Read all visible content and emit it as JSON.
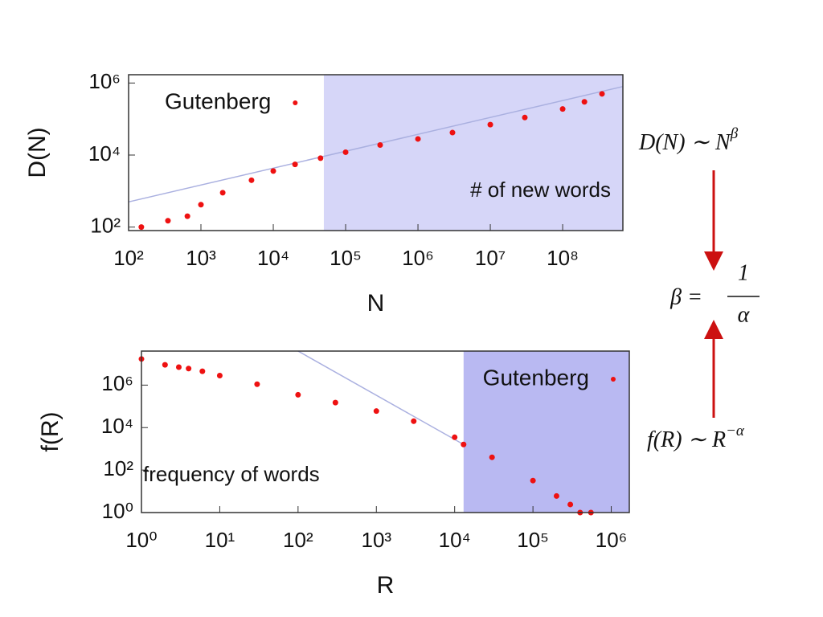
{
  "chart_data": [
    {
      "type": "scatter",
      "xlabel": "N",
      "ylabel": "D(N)",
      "xlog": true,
      "ylog": true,
      "xlim": [
        100,
        680000000
      ],
      "ylim": [
        80,
        1700000
      ],
      "xticks": [
        {
          "value": 100,
          "label": "10²"
        },
        {
          "value": 1000,
          "label": "10³"
        },
        {
          "value": 10000,
          "label": "10⁴"
        },
        {
          "value": 100000,
          "label": "10⁵"
        },
        {
          "value": 1000000,
          "label": "10⁶"
        },
        {
          "value": 10000000,
          "label": "10⁷"
        },
        {
          "value": 100000000,
          "label": "10⁸"
        }
      ],
      "yticks": [
        {
          "value": 100,
          "label": "10²"
        },
        {
          "value": 10000,
          "label": "10⁴"
        },
        {
          "value": 1000000,
          "label": "10⁶"
        }
      ],
      "series": [
        {
          "name": "Gutenberg",
          "color": "#ee1111",
          "x": [
            150,
            350,
            650,
            1000,
            2000,
            5000,
            10000,
            20000,
            45000,
            100000,
            300000,
            1000000,
            3000000,
            10000000,
            30000000,
            100000000,
            200000000,
            350000000
          ],
          "values": [
            100,
            150,
            200,
            420,
            900,
            2000,
            3600,
            5500,
            8200,
            12000,
            19000,
            28000,
            42000,
            70000,
            110000,
            190000,
            300000,
            500000
          ]
        }
      ],
      "fit": {
        "color": "#aab0e0",
        "x": [
          100,
          680000000
        ],
        "values": [
          500,
          800000
        ]
      },
      "shaded_region": {
        "from": 50000,
        "to": 680000000,
        "color": "#d6d6f8"
      },
      "annotation": "# of new words",
      "legend": "upper left"
    },
    {
      "type": "scatter",
      "xlabel": "R",
      "ylabel": "f(R)",
      "xlog": true,
      "ylog": true,
      "xlim": [
        1,
        1700000
      ],
      "ylim": [
        1,
        40000000
      ],
      "xticks": [
        {
          "value": 1,
          "label": "10⁰"
        },
        {
          "value": 10,
          "label": "10¹"
        },
        {
          "value": 100,
          "label": "10²"
        },
        {
          "value": 1000,
          "label": "10³"
        },
        {
          "value": 10000,
          "label": "10⁴"
        },
        {
          "value": 100000,
          "label": "10⁵"
        },
        {
          "value": 1000000,
          "label": "10⁶"
        }
      ],
      "yticks": [
        {
          "value": 1,
          "label": "10⁰"
        },
        {
          "value": 100,
          "label": "10²"
        },
        {
          "value": 10000,
          "label": "10⁴"
        },
        {
          "value": 1000000,
          "label": "10⁶"
        }
      ],
      "series": [
        {
          "name": "Gutenberg",
          "color": "#ee1111",
          "x": [
            1,
            2,
            3,
            4,
            6,
            10,
            30,
            100,
            300,
            1000,
            3000,
            10000,
            13000,
            30000,
            100000,
            200000,
            300000,
            400000,
            550000
          ],
          "values": [
            17000000,
            9000000,
            7000000,
            6000000,
            4500000,
            2800000,
            1100000,
            350000,
            150000,
            60000,
            20000,
            3500,
            1600,
            400,
            32,
            6,
            2.4,
            1,
            1
          ]
        }
      ],
      "fit": {
        "color": "#aab0e0",
        "x": [
          100,
          13000
        ],
        "values": [
          40000000,
          1600
        ]
      },
      "shaded_region": {
        "from": 13000,
        "to": 1700000,
        "color": "#b9b9f2"
      },
      "annotation": "frequency of words",
      "legend": "upper right"
    }
  ],
  "formulas": {
    "heaps": {
      "base": "D(N) ∼ N",
      "sup": "β"
    },
    "relation": {
      "lhs": "β =",
      "num": "1",
      "den": "α"
    },
    "zipf": {
      "base": "f(R) ∼ R",
      "sup": "−α"
    }
  }
}
